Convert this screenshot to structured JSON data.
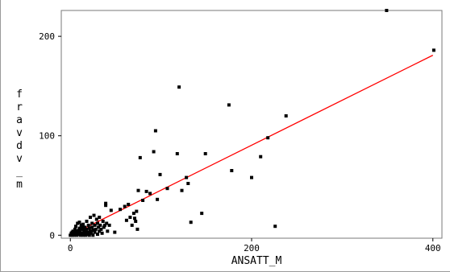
{
  "chart_data": {
    "type": "scatter",
    "xlabel": "ANSATT_M",
    "ylabel": "fravdv_m",
    "xlim": [
      -10,
      410
    ],
    "ylim": [
      -3,
      226
    ],
    "xticks": [
      0,
      200,
      400
    ],
    "yticks": [
      0,
      100,
      200
    ],
    "grid": false,
    "series": [
      {
        "marker": "square",
        "color": "#000000",
        "points": [
          [
            0,
            0
          ],
          [
            1,
            2
          ],
          [
            2,
            0
          ],
          [
            2,
            3
          ],
          [
            3,
            1
          ],
          [
            3,
            4
          ],
          [
            4,
            0
          ],
          [
            4,
            2
          ],
          [
            5,
            3
          ],
          [
            5,
            6
          ],
          [
            6,
            1
          ],
          [
            6,
            9
          ],
          [
            7,
            0
          ],
          [
            7,
            4
          ],
          [
            8,
            2
          ],
          [
            8,
            12
          ],
          [
            9,
            5
          ],
          [
            9,
            1
          ],
          [
            10,
            13
          ],
          [
            10,
            7
          ],
          [
            11,
            3
          ],
          [
            11,
            0
          ],
          [
            12,
            10
          ],
          [
            12,
            6
          ],
          [
            13,
            2
          ],
          [
            13,
            8
          ],
          [
            14,
            0
          ],
          [
            14,
            11
          ],
          [
            15,
            5
          ],
          [
            15,
            2
          ],
          [
            16,
            8
          ],
          [
            17,
            3
          ],
          [
            17,
            0
          ],
          [
            18,
            14
          ],
          [
            18,
            6
          ],
          [
            19,
            1
          ],
          [
            20,
            10
          ],
          [
            20,
            3
          ],
          [
            21,
            7
          ],
          [
            21,
            0
          ],
          [
            22,
            18
          ],
          [
            22,
            4
          ],
          [
            23,
            2
          ],
          [
            24,
            12
          ],
          [
            24,
            8
          ],
          [
            25,
            5
          ],
          [
            25,
            0
          ],
          [
            26,
            20
          ],
          [
            27,
            10
          ],
          [
            27,
            3
          ],
          [
            28,
            6
          ],
          [
            29,
            16
          ],
          [
            30,
            12
          ],
          [
            30,
            1
          ],
          [
            31,
            8
          ],
          [
            32,
            18
          ],
          [
            32,
            4
          ],
          [
            33,
            10
          ],
          [
            34,
            6
          ],
          [
            35,
            2
          ],
          [
            36,
            14
          ],
          [
            37,
            8
          ],
          [
            38,
            10
          ],
          [
            39,
            32
          ],
          [
            39,
            30
          ],
          [
            40,
            12
          ],
          [
            41,
            4
          ],
          [
            43,
            10
          ],
          [
            45,
            25
          ],
          [
            49,
            3
          ],
          [
            55,
            26
          ],
          [
            60,
            29
          ],
          [
            62,
            15
          ],
          [
            64,
            31
          ],
          [
            66,
            18
          ],
          [
            68,
            10
          ],
          [
            70,
            22
          ],
          [
            71,
            17
          ],
          [
            72,
            14
          ],
          [
            73,
            24
          ],
          [
            74,
            6
          ],
          [
            75,
            45
          ],
          [
            77,
            78
          ],
          [
            80,
            35
          ],
          [
            84,
            44
          ],
          [
            88,
            42
          ],
          [
            92,
            84
          ],
          [
            94,
            105
          ],
          [
            96,
            36
          ],
          [
            99,
            61
          ],
          [
            107,
            47
          ],
          [
            118,
            82
          ],
          [
            120,
            149
          ],
          [
            123,
            45
          ],
          [
            128,
            58
          ],
          [
            130,
            52
          ],
          [
            133,
            13
          ],
          [
            145,
            22
          ],
          [
            149,
            82
          ],
          [
            175,
            131
          ],
          [
            178,
            65
          ],
          [
            200,
            58
          ],
          [
            210,
            79
          ],
          [
            218,
            98
          ],
          [
            226,
            9
          ],
          [
            238,
            120
          ],
          [
            349,
            226
          ],
          [
            401,
            186
          ]
        ]
      }
    ],
    "fit_line": {
      "color": "#ff0000",
      "from": [
        0,
        0
      ],
      "to": [
        400,
        181
      ]
    }
  }
}
